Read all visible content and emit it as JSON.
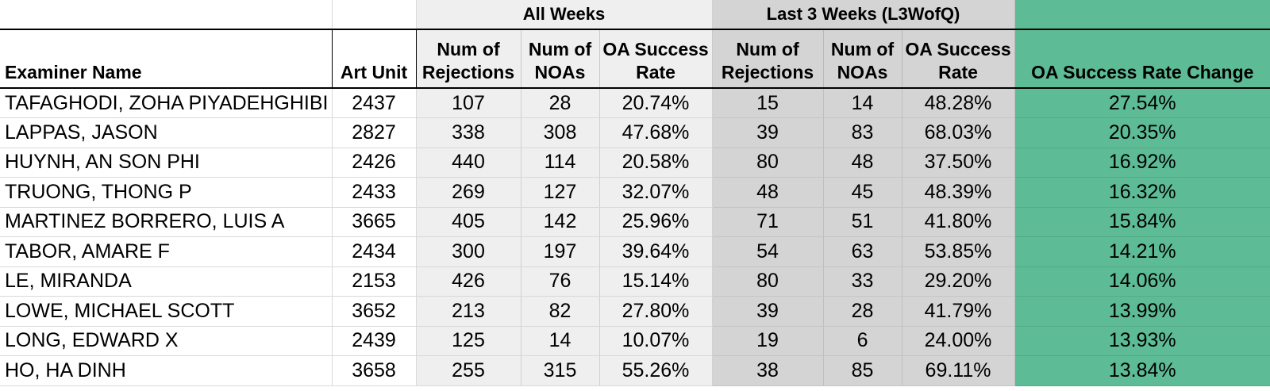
{
  "groups": {
    "all_weeks": "All Weeks",
    "last_3_weeks": "Last 3 Weeks (L3WofQ)"
  },
  "headers": {
    "examiner_name": "Examiner Name",
    "art_unit": "Art Unit",
    "all_rejections": "Num of Rejections",
    "all_noas": "Num of NOAs",
    "all_success": "OA Success Rate",
    "l3_rejections": "Num of Rejections",
    "l3_noas": "Num of NOAs",
    "l3_success": "OA Success Rate",
    "success_change": "OA Success Rate Change"
  },
  "colors": {
    "all_weeks_fill": "#efefef",
    "last_3_weeks_fill": "#d4d4d4",
    "change_fill": "#5dbb96"
  },
  "rows": [
    {
      "name": "TAFAGHODI, ZOHA PIYADEHGHIBI",
      "art_unit": "2437",
      "all_rej": "107",
      "all_noa": "28",
      "all_rate": "20.74%",
      "l3_rej": "15",
      "l3_noa": "14",
      "l3_rate": "48.28%",
      "change": "27.54%"
    },
    {
      "name": "LAPPAS, JASON",
      "art_unit": "2827",
      "all_rej": "338",
      "all_noa": "308",
      "all_rate": "47.68%",
      "l3_rej": "39",
      "l3_noa": "83",
      "l3_rate": "68.03%",
      "change": "20.35%"
    },
    {
      "name": "HUYNH, AN SON PHI",
      "art_unit": "2426",
      "all_rej": "440",
      "all_noa": "114",
      "all_rate": "20.58%",
      "l3_rej": "80",
      "l3_noa": "48",
      "l3_rate": "37.50%",
      "change": "16.92%"
    },
    {
      "name": "TRUONG, THONG P",
      "art_unit": "2433",
      "all_rej": "269",
      "all_noa": "127",
      "all_rate": "32.07%",
      "l3_rej": "48",
      "l3_noa": "45",
      "l3_rate": "48.39%",
      "change": "16.32%"
    },
    {
      "name": "MARTINEZ BORRERO, LUIS A",
      "art_unit": "3665",
      "all_rej": "405",
      "all_noa": "142",
      "all_rate": "25.96%",
      "l3_rej": "71",
      "l3_noa": "51",
      "l3_rate": "41.80%",
      "change": "15.84%"
    },
    {
      "name": "TABOR, AMARE F",
      "art_unit": "2434",
      "all_rej": "300",
      "all_noa": "197",
      "all_rate": "39.64%",
      "l3_rej": "54",
      "l3_noa": "63",
      "l3_rate": "53.85%",
      "change": "14.21%"
    },
    {
      "name": "LE, MIRANDA",
      "art_unit": "2153",
      "all_rej": "426",
      "all_noa": "76",
      "all_rate": "15.14%",
      "l3_rej": "80",
      "l3_noa": "33",
      "l3_rate": "29.20%",
      "change": "14.06%"
    },
    {
      "name": "LOWE, MICHAEL SCOTT",
      "art_unit": "3652",
      "all_rej": "213",
      "all_noa": "82",
      "all_rate": "27.80%",
      "l3_rej": "39",
      "l3_noa": "28",
      "l3_rate": "41.79%",
      "change": "13.99%"
    },
    {
      "name": "LONG, EDWARD X",
      "art_unit": "2439",
      "all_rej": "125",
      "all_noa": "14",
      "all_rate": "10.07%",
      "l3_rej": "19",
      "l3_noa": "6",
      "l3_rate": "24.00%",
      "change": "13.93%"
    },
    {
      "name": "HO, HA DINH",
      "art_unit": "3658",
      "all_rej": "255",
      "all_noa": "315",
      "all_rate": "55.26%",
      "l3_rej": "38",
      "l3_noa": "85",
      "l3_rate": "69.11%",
      "change": "13.84%"
    }
  ]
}
